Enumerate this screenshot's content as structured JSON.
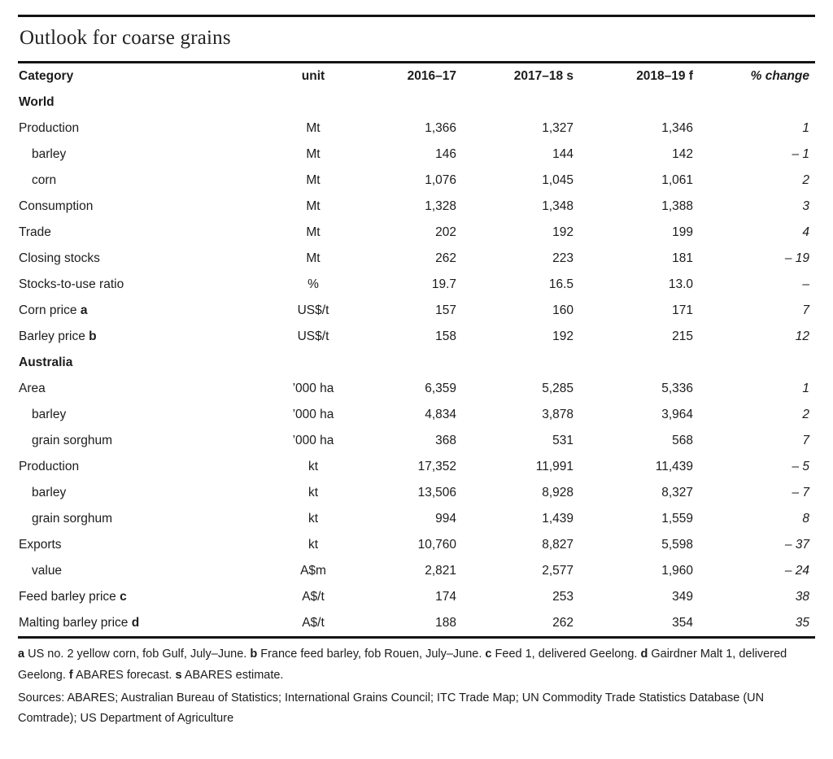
{
  "title": "Outlook for coarse grains",
  "table": {
    "headers": {
      "category": "Category",
      "unit": "unit",
      "y1": "2016–17",
      "y2": "2017–18 s",
      "y3": "2018–19 f",
      "change": "% change"
    },
    "rows": [
      {
        "label": "World",
        "section": true,
        "indent": false,
        "unit": "",
        "y1": "",
        "y2": "",
        "y3": "",
        "change": ""
      },
      {
        "label": "Production",
        "section": false,
        "indent": false,
        "unit": "Mt",
        "y1": "1,366",
        "y2": "1,327",
        "y3": "1,346",
        "change": "1"
      },
      {
        "label": "barley",
        "section": false,
        "indent": true,
        "unit": "Mt",
        "y1": "146",
        "y2": "144",
        "y3": "142",
        "change": "– 1"
      },
      {
        "label": "corn",
        "section": false,
        "indent": true,
        "unit": "Mt",
        "y1": "1,076",
        "y2": "1,045",
        "y3": "1,061",
        "change": "2"
      },
      {
        "label": "Consumption",
        "section": false,
        "indent": false,
        "unit": "Mt",
        "y1": "1,328",
        "y2": "1,348",
        "y3": "1,388",
        "change": "3"
      },
      {
        "label": "Trade",
        "section": false,
        "indent": false,
        "unit": "Mt",
        "y1": "202",
        "y2": "192",
        "y3": "199",
        "change": "4"
      },
      {
        "label": "Closing stocks",
        "section": false,
        "indent": false,
        "unit": "Mt",
        "y1": "262",
        "y2": "223",
        "y3": "181",
        "change": "– 19"
      },
      {
        "label": "Stocks-to-use ratio",
        "section": false,
        "indent": false,
        "unit": "%",
        "y1": "19.7",
        "y2": "16.5",
        "y3": "13.0",
        "change": "–"
      },
      {
        "label": "Corn price",
        "suffix": "a",
        "section": false,
        "indent": false,
        "unit": "US$/t",
        "y1": "157",
        "y2": "160",
        "y3": "171",
        "change": "7"
      },
      {
        "label": "Barley price",
        "suffix": "b",
        "section": false,
        "indent": false,
        "unit": "US$/t",
        "y1": "158",
        "y2": "192",
        "y3": "215",
        "change": "12"
      },
      {
        "label": "Australia",
        "section": true,
        "indent": false,
        "unit": "",
        "y1": "",
        "y2": "",
        "y3": "",
        "change": ""
      },
      {
        "label": "Area",
        "section": false,
        "indent": false,
        "unit": "’000 ha",
        "y1": "6,359",
        "y2": "5,285",
        "y3": "5,336",
        "change": "1"
      },
      {
        "label": "barley",
        "section": false,
        "indent": true,
        "unit": "’000 ha",
        "y1": "4,834",
        "y2": "3,878",
        "y3": "3,964",
        "change": "2"
      },
      {
        "label": "grain sorghum",
        "section": false,
        "indent": true,
        "unit": "’000 ha",
        "y1": "368",
        "y2": "531",
        "y3": "568",
        "change": "7"
      },
      {
        "label": "Production",
        "section": false,
        "indent": false,
        "unit": "kt",
        "y1": "17,352",
        "y2": "11,991",
        "y3": "11,439",
        "change": "– 5"
      },
      {
        "label": "barley",
        "section": false,
        "indent": true,
        "unit": "kt",
        "y1": "13,506",
        "y2": "8,928",
        "y3": "8,327",
        "change": "– 7"
      },
      {
        "label": "grain sorghum",
        "section": false,
        "indent": true,
        "unit": "kt",
        "y1": "994",
        "y2": "1,439",
        "y3": "1,559",
        "change": "8"
      },
      {
        "label": "Exports",
        "section": false,
        "indent": false,
        "unit": "kt",
        "y1": "10,760",
        "y2": "8,827",
        "y3": "5,598",
        "change": "– 37"
      },
      {
        "label": "value",
        "section": false,
        "indent": true,
        "unit": "A$m",
        "y1": "2,821",
        "y2": "2,577",
        "y3": "1,960",
        "change": "– 24"
      },
      {
        "label": "Feed barley price",
        "suffix": "c",
        "section": false,
        "indent": false,
        "unit": "A$/t",
        "y1": "174",
        "y2": "253",
        "y3": "349",
        "change": "38"
      },
      {
        "label": "Malting barley price",
        "suffix": "d",
        "section": false,
        "indent": false,
        "unit": "A$/t",
        "y1": "188",
        "y2": "262",
        "y3": "354",
        "change": "35"
      }
    ]
  },
  "footnotes": {
    "note_segments": [
      {
        "text": "a",
        "bold": true
      },
      {
        "text": " US no. 2 yellow corn, fob Gulf, July–June. ",
        "bold": false
      },
      {
        "text": "b",
        "bold": true
      },
      {
        "text": " France feed barley, fob Rouen, July–June. ",
        "bold": false
      },
      {
        "text": "c",
        "bold": true
      },
      {
        "text": " Feed 1, delivered Geelong. ",
        "bold": false
      },
      {
        "text": "d",
        "bold": true
      },
      {
        "text": " Gairdner Malt 1, delivered Geelong. ",
        "bold": false
      },
      {
        "text": "f",
        "bold": true
      },
      {
        "text": " ABARES forecast. ",
        "bold": false
      },
      {
        "text": "s",
        "bold": true
      },
      {
        "text": " ABARES estimate.",
        "bold": false
      }
    ],
    "sources": "Sources: ABARES; Australian Bureau of Statistics; International Grains Council; ITC Trade Map; UN Commodity Trade Statistics Database (UN Comtrade); US Department of Agriculture"
  }
}
